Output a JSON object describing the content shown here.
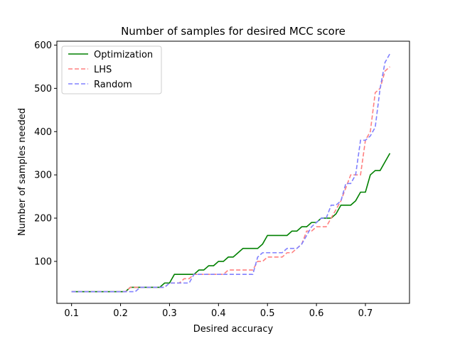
{
  "chart_data": {
    "type": "line",
    "title": "Number of samples for desired MCC score",
    "xlabel": "Desired accuracy",
    "ylabel": "Number of samples needed",
    "xlim": [
      0.07,
      0.79
    ],
    "ylim": [
      3,
      609
    ],
    "xticks": [
      "0.1",
      "0.2",
      "0.3",
      "0.4",
      "0.5",
      "0.6",
      "0.7"
    ],
    "yticks": [
      "100",
      "200",
      "300",
      "400",
      "500",
      "600"
    ],
    "grid": false,
    "legend_position": "top-left",
    "x": [
      0.1,
      0.11,
      0.12,
      0.13,
      0.14,
      0.15,
      0.16,
      0.17,
      0.18,
      0.19,
      0.2,
      0.21,
      0.22,
      0.23,
      0.24,
      0.25,
      0.26,
      0.27,
      0.28,
      0.29,
      0.3,
      0.31,
      0.32,
      0.33,
      0.34,
      0.35,
      0.36,
      0.37,
      0.38,
      0.39,
      0.4,
      0.41,
      0.42,
      0.43,
      0.44,
      0.45,
      0.46,
      0.47,
      0.48,
      0.49,
      0.5,
      0.51,
      0.52,
      0.53,
      0.54,
      0.55,
      0.56,
      0.57,
      0.58,
      0.59,
      0.6,
      0.61,
      0.62,
      0.63,
      0.64,
      0.65,
      0.66,
      0.67,
      0.68,
      0.69,
      0.7,
      0.71,
      0.72,
      0.73,
      0.74,
      0.75
    ],
    "series": [
      {
        "name": "Optimization",
        "color": "#008000",
        "style": "solid",
        "values": [
          30,
          30,
          30,
          30,
          30,
          30,
          30,
          30,
          30,
          30,
          30,
          30,
          40,
          40,
          40,
          40,
          40,
          40,
          40,
          50,
          50,
          70,
          70,
          70,
          70,
          70,
          80,
          80,
          90,
          90,
          100,
          100,
          110,
          110,
          120,
          130,
          130,
          130,
          130,
          140,
          160,
          160,
          160,
          160,
          160,
          170,
          170,
          180,
          180,
          190,
          190,
          200,
          200,
          200,
          210,
          230,
          230,
          230,
          240,
          260,
          260,
          300,
          310,
          310,
          330,
          350
        ]
      },
      {
        "name": "LHS",
        "color": "#ff8080",
        "style": "dashed",
        "values": [
          30,
          30,
          30,
          30,
          30,
          30,
          30,
          30,
          30,
          30,
          30,
          30,
          40,
          40,
          40,
          40,
          40,
          40,
          40,
          40,
          50,
          50,
          50,
          60,
          60,
          70,
          70,
          70,
          70,
          70,
          70,
          70,
          80,
          80,
          80,
          80,
          80,
          80,
          100,
          100,
          110,
          110,
          110,
          110,
          120,
          120,
          130,
          140,
          170,
          170,
          180,
          180,
          180,
          200,
          220,
          240,
          270,
          300,
          300,
          300,
          380,
          400,
          490,
          500,
          540,
          550
        ]
      },
      {
        "name": "Random",
        "color": "#8080ff",
        "style": "dashed",
        "values": [
          30,
          30,
          30,
          30,
          30,
          30,
          30,
          30,
          30,
          30,
          30,
          30,
          30,
          30,
          40,
          40,
          40,
          40,
          40,
          40,
          50,
          50,
          50,
          50,
          50,
          70,
          70,
          70,
          70,
          70,
          70,
          70,
          70,
          70,
          70,
          70,
          70,
          70,
          110,
          120,
          120,
          120,
          120,
          120,
          130,
          130,
          130,
          140,
          160,
          180,
          190,
          200,
          200,
          230,
          230,
          240,
          280,
          280,
          300,
          380,
          380,
          390,
          410,
          500,
          560,
          580
        ]
      }
    ]
  }
}
